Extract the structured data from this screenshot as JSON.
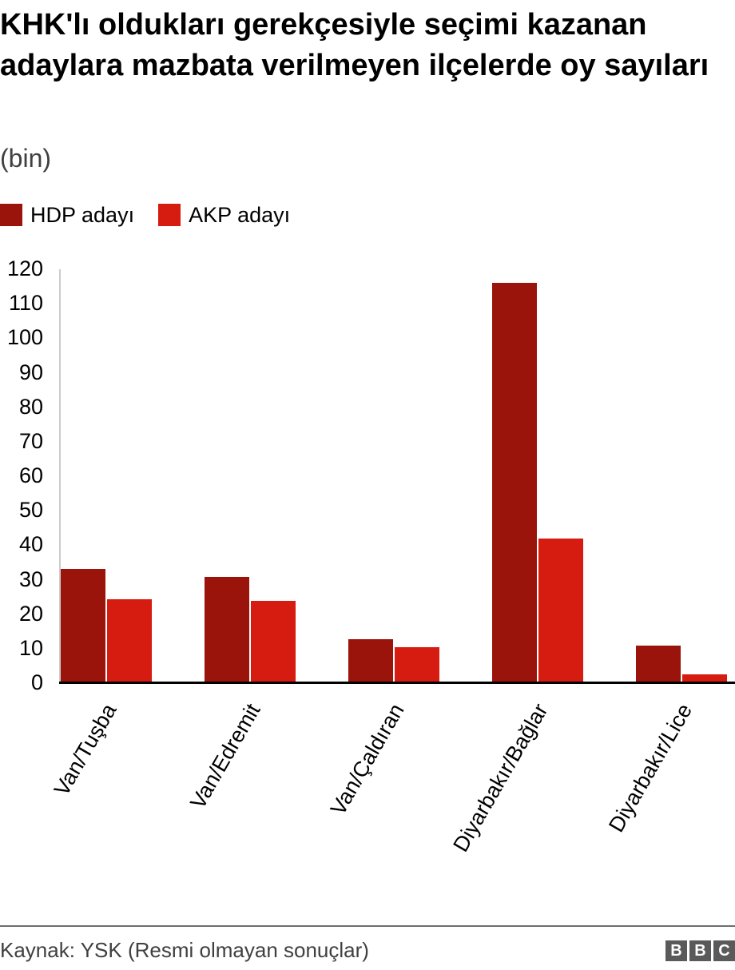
{
  "title": "KHK'lı oldukları gerekçesiyle seçimi kazanan adaylara mazbata verilmeyen ilçelerde oy sayıları",
  "subtitle": "(bin)",
  "legend": [
    {
      "label": "HDP adayı",
      "color": "#9a140c"
    },
    {
      "label": "AKP adayı",
      "color": "#d61b10"
    }
  ],
  "footer": {
    "source": "Kaynak: YSK (Resmi olmayan sonuçlar)",
    "logo": [
      "B",
      "B",
      "C"
    ]
  },
  "chart_data": {
    "type": "bar",
    "title": "KHK'lı oldukları gerekçesiyle seçimi kazanan adaylara mazbata verilmeyen ilçelerde oy sayıları",
    "subtitle": "(bin)",
    "xlabel": "",
    "ylabel": "",
    "categories": [
      "Van/Tuşba",
      "Van/Edremit",
      "Van/Çaldıran",
      "Diyarbakır/Bağlar",
      "Diyarbakır/Lice"
    ],
    "series": [
      {
        "name": "HDP adayı",
        "color": "#9a140c",
        "values": [
          33.1,
          30.8,
          12.7,
          116.0,
          10.9
        ]
      },
      {
        "name": "AKP adayı",
        "color": "#d61b10",
        "values": [
          24.3,
          23.9,
          10.4,
          41.9,
          2.5
        ]
      }
    ],
    "yticks": [
      0,
      10,
      20,
      30,
      40,
      50,
      60,
      70,
      80,
      90,
      100,
      110,
      120
    ],
    "ylim": [
      0,
      120
    ],
    "grid": false,
    "legend_position": "top-left",
    "source": "Kaynak: YSK (Resmi olmayan sonuçlar)"
  }
}
